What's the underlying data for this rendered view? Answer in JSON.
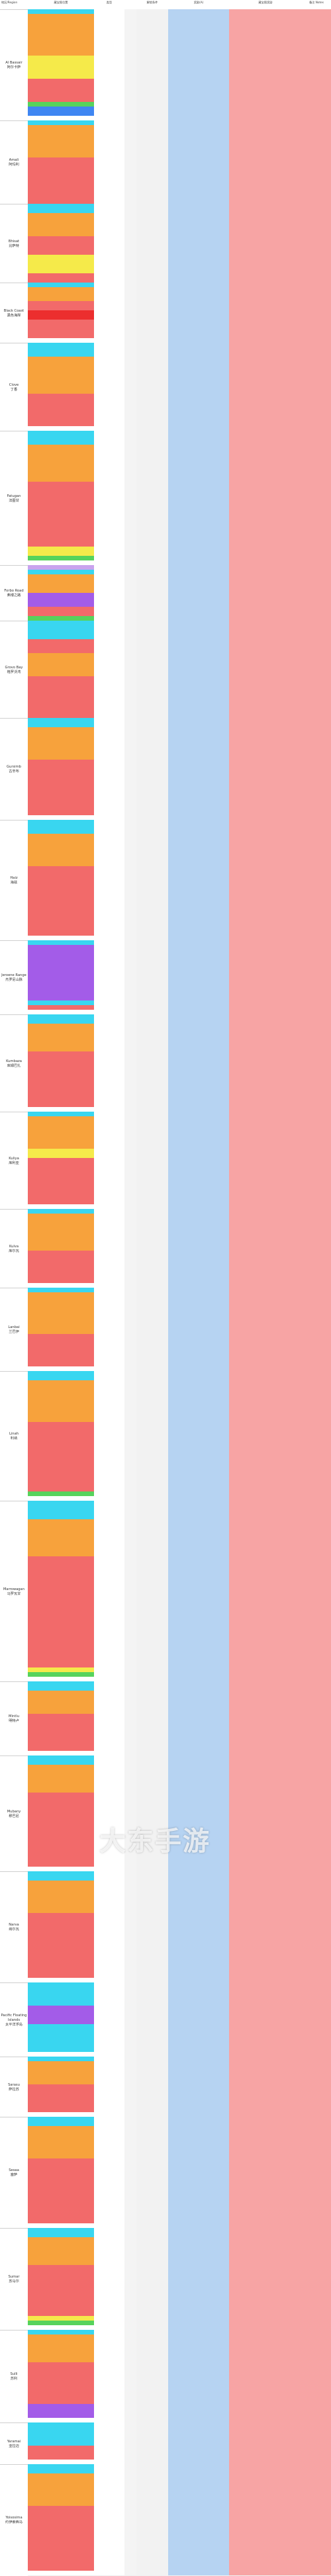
{
  "header": {
    "corner": "地区/Region",
    "col_name": "藏宝图位置",
    "col_kind": "类型",
    "col_req": "解锁条件",
    "col_blue": "奖励(A)",
    "col_pink": "藏宝图奖励",
    "col_tail": "备注 Notes"
  },
  "watermark": "大东手游",
  "colors": {
    "cyan": "#39d6f0",
    "orange": "#f7a23c",
    "yellow": "#f5ea4a",
    "purple": "#a35ce8",
    "green": "#57d35c",
    "salmon": "#f26a6a",
    "red": "#ec2e2e",
    "blue": "#3f86f2",
    "white": "#ffffff",
    "gray": "#d9d9d9",
    "lavender": "#c9a3ee",
    "lime": "#7ee06a"
  },
  "regions": [
    {
      "name": "Al Bassair",
      "name_cn": "阿尔卡萨",
      "rows": 24,
      "colors": [
        "cyan",
        "orange",
        "orange",
        "orange",
        "orange",
        "orange",
        "orange",
        "orange",
        "orange",
        "orange",
        "yellow",
        "yellow",
        "yellow",
        "yellow",
        "yellow",
        "salmon",
        "salmon",
        "salmon",
        "salmon",
        "salmon",
        "green",
        "blue",
        "blue",
        "white"
      ]
    },
    {
      "name": "Amali",
      "name_cn": "阿玛利",
      "rows": 18,
      "colors": [
        "cyan",
        "orange",
        "orange",
        "orange",
        "orange",
        "orange",
        "orange",
        "orange",
        "salmon",
        "salmon",
        "salmon",
        "salmon",
        "salmon",
        "salmon",
        "salmon",
        "salmon",
        "salmon",
        "salmon"
      ]
    },
    {
      "name": "Bhisat",
      "name_cn": "比萨特",
      "rows": 17,
      "colors": [
        "cyan",
        "cyan",
        "orange",
        "orange",
        "orange",
        "orange",
        "orange",
        "salmon",
        "salmon",
        "salmon",
        "salmon",
        "yellow",
        "yellow",
        "yellow",
        "yellow",
        "salmon",
        "salmon"
      ]
    },
    {
      "name": "Black Coast",
      "name_cn": "黑色海岸",
      "rows": 13,
      "colors": [
        "cyan",
        "orange",
        "orange",
        "orange",
        "salmon",
        "salmon",
        "red",
        "red",
        "salmon",
        "salmon",
        "salmon",
        "salmon",
        "white"
      ]
    },
    {
      "name": "Clove",
      "name_cn": "丁香",
      "rows": 19,
      "colors": [
        "cyan",
        "cyan",
        "cyan",
        "orange",
        "orange",
        "orange",
        "orange",
        "orange",
        "orange",
        "orange",
        "orange",
        "salmon",
        "salmon",
        "salmon",
        "salmon",
        "salmon",
        "salmon",
        "salmon",
        "white"
      ]
    },
    {
      "name": "Fatugan",
      "name_cn": "法图甘",
      "rows": 29,
      "colors": [
        "cyan",
        "cyan",
        "cyan",
        "orange",
        "orange",
        "orange",
        "orange",
        "orange",
        "orange",
        "orange",
        "orange",
        "salmon",
        "salmon",
        "salmon",
        "salmon",
        "salmon",
        "salmon",
        "salmon",
        "salmon",
        "salmon",
        "salmon",
        "salmon",
        "salmon",
        "salmon",
        "salmon",
        "yellow",
        "yellow",
        "green",
        "white"
      ]
    },
    {
      "name": "Forbo Road",
      "name_cn": "弗博之路",
      "rows": 12,
      "colors": [
        "lavender",
        "cyan",
        "orange",
        "orange",
        "orange",
        "orange",
        "purple",
        "purple",
        "purple",
        "salmon",
        "salmon",
        "green"
      ]
    },
    {
      "name": "Grovo Bay",
      "name_cn": "格罗沃湾",
      "rows": 21,
      "colors": [
        "cyan",
        "cyan",
        "cyan",
        "cyan",
        "salmon",
        "salmon",
        "salmon",
        "orange",
        "orange",
        "orange",
        "orange",
        "orange",
        "salmon",
        "salmon",
        "salmon",
        "salmon",
        "salmon",
        "salmon",
        "salmon",
        "salmon",
        "salmon"
      ]
    },
    {
      "name": "Gursimb",
      "name_cn": "古辛布",
      "rows": 22,
      "colors": [
        "cyan",
        "cyan",
        "orange",
        "orange",
        "orange",
        "orange",
        "orange",
        "orange",
        "orange",
        "salmon",
        "salmon",
        "salmon",
        "salmon",
        "salmon",
        "salmon",
        "salmon",
        "salmon",
        "salmon",
        "salmon",
        "salmon",
        "salmon",
        "white"
      ]
    },
    {
      "name": "Haiz",
      "name_cn": "海兹",
      "rows": 26,
      "colors": [
        "cyan",
        "cyan",
        "cyan",
        "orange",
        "orange",
        "orange",
        "orange",
        "orange",
        "orange",
        "orange",
        "salmon",
        "salmon",
        "salmon",
        "salmon",
        "salmon",
        "salmon",
        "salmon",
        "salmon",
        "salmon",
        "salmon",
        "salmon",
        "salmon",
        "salmon",
        "salmon",
        "salmon",
        "white"
      ]
    },
    {
      "name": "Jeroene Range",
      "name_cn": "杰罗尼山脉",
      "rows": 16,
      "colors": [
        "cyan",
        "purple",
        "purple",
        "purple",
        "purple",
        "purple",
        "purple",
        "purple",
        "purple",
        "purple",
        "purple",
        "purple",
        "purple",
        "cyan",
        "salmon",
        "white"
      ]
    },
    {
      "name": "Kumbaza",
      "name_cn": "库姆巴扎",
      "rows": 21,
      "colors": [
        "cyan",
        "cyan",
        "orange",
        "orange",
        "orange",
        "orange",
        "orange",
        "orange",
        "salmon",
        "salmon",
        "salmon",
        "salmon",
        "salmon",
        "salmon",
        "salmon",
        "salmon",
        "salmon",
        "salmon",
        "salmon",
        "salmon",
        "white"
      ]
    },
    {
      "name": "Kuliya",
      "name_cn": "库利亚",
      "rows": 21,
      "colors": [
        "cyan",
        "orange",
        "orange",
        "orange",
        "orange",
        "orange",
        "orange",
        "orange",
        "yellow",
        "yellow",
        "salmon",
        "salmon",
        "salmon",
        "salmon",
        "salmon",
        "salmon",
        "salmon",
        "salmon",
        "salmon",
        "salmon",
        "white"
      ]
    },
    {
      "name": "Kulva",
      "name_cn": "库尔瓦",
      "rows": 17,
      "colors": [
        "cyan",
        "orange",
        "orange",
        "orange",
        "orange",
        "orange",
        "orange",
        "orange",
        "orange",
        "salmon",
        "salmon",
        "salmon",
        "salmon",
        "salmon",
        "salmon",
        "salmon",
        "white"
      ]
    },
    {
      "name": "Lanbai",
      "name_cn": "兰巴伊",
      "rows": 18,
      "colors": [
        "cyan",
        "orange",
        "orange",
        "orange",
        "orange",
        "orange",
        "orange",
        "orange",
        "orange",
        "orange",
        "salmon",
        "salmon",
        "salmon",
        "salmon",
        "salmon",
        "salmon",
        "salmon",
        "white"
      ]
    },
    {
      "name": "Linah",
      "name_cn": "利纳",
      "rows": 28,
      "colors": [
        "cyan",
        "cyan",
        "orange",
        "orange",
        "orange",
        "orange",
        "orange",
        "orange",
        "orange",
        "orange",
        "orange",
        "salmon",
        "salmon",
        "salmon",
        "salmon",
        "salmon",
        "salmon",
        "salmon",
        "salmon",
        "salmon",
        "salmon",
        "salmon",
        "salmon",
        "salmon",
        "salmon",
        "salmon",
        "green",
        "white"
      ]
    },
    {
      "name": "Marrowagan",
      "name_cn": "马罗瓦甘",
      "rows": 39,
      "colors": [
        "cyan",
        "cyan",
        "cyan",
        "cyan",
        "orange",
        "orange",
        "orange",
        "orange",
        "orange",
        "orange",
        "orange",
        "orange",
        "salmon",
        "salmon",
        "salmon",
        "salmon",
        "salmon",
        "salmon",
        "salmon",
        "salmon",
        "salmon",
        "salmon",
        "salmon",
        "salmon",
        "salmon",
        "salmon",
        "salmon",
        "salmon",
        "salmon",
        "salmon",
        "salmon",
        "salmon",
        "salmon",
        "salmon",
        "salmon",
        "salmon",
        "yellow",
        "green",
        "white"
      ]
    },
    {
      "name": "Mintlu",
      "name_cn": "明特卢",
      "rows": 16,
      "colors": [
        "cyan",
        "cyan",
        "orange",
        "orange",
        "orange",
        "orange",
        "orange",
        "salmon",
        "salmon",
        "salmon",
        "salmon",
        "salmon",
        "salmon",
        "salmon",
        "salmon",
        "white"
      ]
    },
    {
      "name": "Mubany",
      "name_cn": "穆巴尼",
      "rows": 25,
      "colors": [
        "cyan",
        "cyan",
        "orange",
        "orange",
        "orange",
        "orange",
        "orange",
        "orange",
        "salmon",
        "salmon",
        "salmon",
        "salmon",
        "salmon",
        "salmon",
        "salmon",
        "salmon",
        "salmon",
        "salmon",
        "salmon",
        "salmon",
        "salmon",
        "salmon",
        "salmon",
        "salmon",
        "white"
      ]
    },
    {
      "name": "Narva",
      "name_cn": "纳尔瓦",
      "rows": 24,
      "colors": [
        "cyan",
        "cyan",
        "orange",
        "orange",
        "orange",
        "orange",
        "orange",
        "orange",
        "orange",
        "salmon",
        "salmon",
        "salmon",
        "salmon",
        "salmon",
        "salmon",
        "salmon",
        "salmon",
        "salmon",
        "salmon",
        "salmon",
        "salmon",
        "salmon",
        "salmon",
        "white"
      ]
    },
    {
      "name": "Pacific Floating Islands",
      "name_cn": "太平洋浮岛",
      "rows": 16,
      "colors": [
        "cyan",
        "cyan",
        "cyan",
        "cyan",
        "cyan",
        "purple",
        "purple",
        "purple",
        "purple",
        "cyan",
        "cyan",
        "cyan",
        "cyan",
        "cyan",
        "cyan",
        "white"
      ]
    },
    {
      "name": "Sarasu",
      "name_cn": "萨拉苏",
      "rows": 13,
      "colors": [
        "cyan",
        "orange",
        "orange",
        "orange",
        "orange",
        "orange",
        "salmon",
        "salmon",
        "salmon",
        "salmon",
        "salmon",
        "salmon",
        "white"
      ]
    },
    {
      "name": "Sesaa",
      "name_cn": "塞萨",
      "rows": 24,
      "colors": [
        "cyan",
        "cyan",
        "orange",
        "orange",
        "orange",
        "orange",
        "orange",
        "orange",
        "orange",
        "salmon",
        "salmon",
        "salmon",
        "salmon",
        "salmon",
        "salmon",
        "salmon",
        "salmon",
        "salmon",
        "salmon",
        "salmon",
        "salmon",
        "salmon",
        "salmon",
        "white"
      ]
    },
    {
      "name": "Sumar",
      "name_cn": "苏马尔",
      "rows": 22,
      "colors": [
        "cyan",
        "cyan",
        "orange",
        "orange",
        "orange",
        "orange",
        "orange",
        "orange",
        "salmon",
        "salmon",
        "salmon",
        "salmon",
        "salmon",
        "salmon",
        "salmon",
        "salmon",
        "salmon",
        "salmon",
        "salmon",
        "yellow",
        "green",
        "white"
      ]
    },
    {
      "name": "Sulli",
      "name_cn": "苏利",
      "rows": 20,
      "colors": [
        "cyan",
        "orange",
        "orange",
        "orange",
        "orange",
        "orange",
        "orange",
        "salmon",
        "salmon",
        "salmon",
        "salmon",
        "salmon",
        "salmon",
        "salmon",
        "salmon",
        "salmon",
        "purple",
        "purple",
        "purple",
        "white"
      ]
    },
    {
      "name": "Yaramai",
      "name_cn": "亚拉迈",
      "rows": 9,
      "colors": [
        "cyan",
        "cyan",
        "cyan",
        "cyan",
        "cyan",
        "salmon",
        "salmon",
        "salmon",
        "white"
      ]
    },
    {
      "name": "Yoisosima",
      "name_cn": "约伊索西马",
      "rows": 24,
      "colors": [
        "cyan",
        "cyan",
        "orange",
        "orange",
        "orange",
        "orange",
        "orange",
        "orange",
        "orange",
        "salmon",
        "salmon",
        "salmon",
        "salmon",
        "salmon",
        "salmon",
        "salmon",
        "salmon",
        "salmon",
        "salmon",
        "salmon",
        "salmon",
        "salmon",
        "salmon",
        "white"
      ]
    }
  ]
}
